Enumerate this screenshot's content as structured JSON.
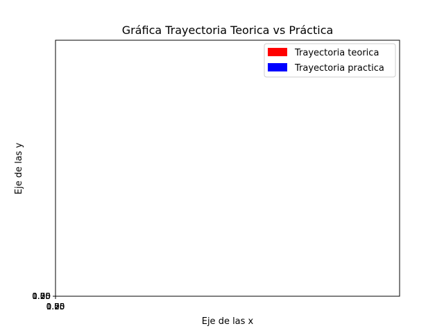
{
  "chart_data": {
    "type": "line",
    "title": "Gráfica Trayectoria Teorica vs Práctica",
    "xlabel": "Eje de las x",
    "ylabel": "Eje de las y",
    "x_ticks": [
      "0.00",
      "0.25",
      "0.50",
      "0.75",
      "1.00"
    ],
    "y_ticks": [
      "0.00",
      "0.25",
      "0.50",
      "0.75",
      "1.00"
    ],
    "xlim": [
      0,
      1
    ],
    "ylim": [
      0,
      1
    ],
    "grid": false,
    "legend_position": "top-right",
    "series": [
      {
        "name": "Trayectoria teorica",
        "color": "#ff0000",
        "x": [],
        "y": []
      },
      {
        "name": "Trayectoria practica",
        "color": "#0000ff",
        "x": [],
        "y": []
      }
    ]
  }
}
